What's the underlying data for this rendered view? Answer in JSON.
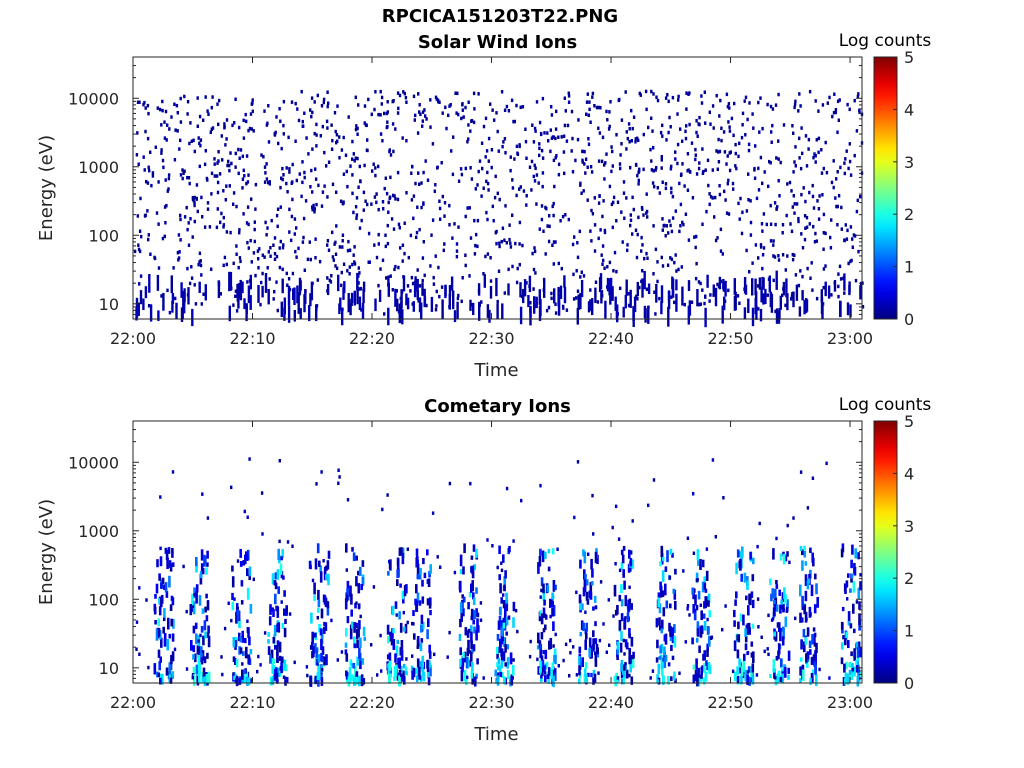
{
  "figure_title": "RPCICA151203T22.PNG",
  "chart_data": [
    {
      "type": "heatmap",
      "title": "Solar Wind Ions",
      "xlabel": "Time",
      "ylabel": "Energy (eV)",
      "x_range": [
        "22:00",
        "23:01"
      ],
      "x_ticks": [
        "22:00",
        "22:10",
        "22:20",
        "22:30",
        "22:40",
        "22:50",
        "23:00"
      ],
      "y_scale": "log",
      "y_ticks": [
        10,
        100,
        1000,
        10000
      ],
      "y_tick_labels": [
        "10",
        "100",
        "1000",
        "10000"
      ],
      "ylim": [
        6,
        40000
      ],
      "colorbar": {
        "label": "Log counts",
        "range": [
          0,
          5
        ],
        "ticks": [
          "0",
          "1",
          "2",
          "3",
          "4",
          "5"
        ]
      },
      "description_of_pixels": "dense scattered points at log count ~0 across 10 eV – 15 keV over the full hour, denser near 10 eV"
    },
    {
      "type": "heatmap",
      "title": "Cometary Ions",
      "xlabel": "Time",
      "ylabel": "Energy (eV)",
      "x_range": [
        "22:00",
        "23:01"
      ],
      "x_ticks": [
        "22:00",
        "22:10",
        "22:20",
        "22:30",
        "22:40",
        "22:50",
        "23:00"
      ],
      "y_scale": "log",
      "y_ticks": [
        10,
        100,
        1000,
        10000
      ],
      "y_tick_labels": [
        "10",
        "100",
        "1000",
        "10000"
      ],
      "ylim": [
        6,
        40000
      ],
      "colorbar": {
        "label": "Log counts",
        "range": [
          0,
          5
        ],
        "ticks": [
          "0",
          "1",
          "2",
          "3",
          "4",
          "5"
        ]
      },
      "bursts_minutes": [
        2.5,
        5.5,
        9,
        12,
        15.5,
        18.5,
        22,
        24,
        28,
        31,
        34.5,
        38,
        41,
        44.5,
        47.5,
        51,
        54,
        56.5,
        60
      ]
    }
  ]
}
